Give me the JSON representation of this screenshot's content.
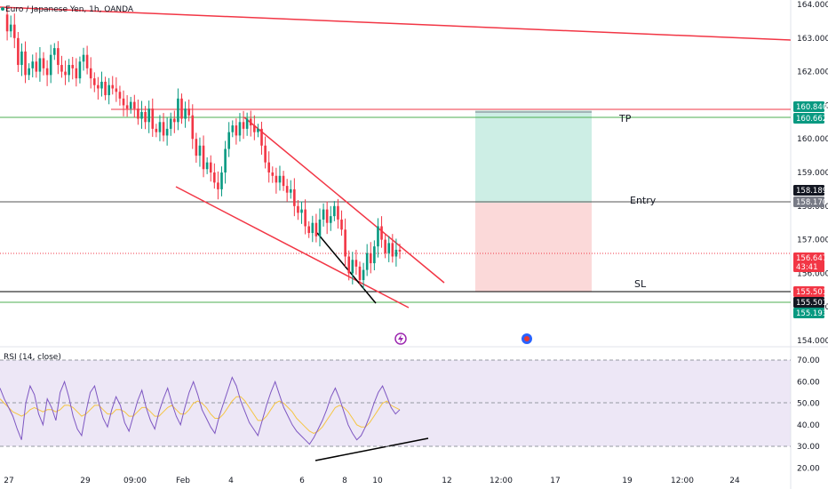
{
  "header": {
    "symbol_title": "Euro / Japanese Yen, 1h, OANDA"
  },
  "rsi": {
    "label": "RSI (14, close)"
  },
  "annotations": {
    "tp": "TP",
    "entry": "Entry",
    "sl": "SL"
  },
  "colors": {
    "up": "#089981",
    "down": "#f23645",
    "trendline": "#f23645",
    "black_line": "#000000",
    "green_line": "#4caf50",
    "profit_zone": "#cdeee5",
    "loss_zone": "#fbd9d9",
    "rsi_line": "#7e57c2",
    "rsi_ma": "#f5c542",
    "rsi_band": "#ede7f6"
  },
  "chart_data": [
    {
      "type": "candlestick",
      "title": "Euro / Japanese Yen, 1h, OANDA",
      "x_ticks": [
        "27",
        "29",
        "09:00",
        "Feb",
        "4",
        "6",
        "8",
        "10",
        "12",
        "12:00",
        "17",
        "19",
        "12:00",
        "24"
      ],
      "y_ticks": [
        154.0,
        155.0,
        156.0,
        157.0,
        158.0,
        159.0,
        160.0,
        161.0,
        162.0,
        163.0,
        164.0
      ],
      "ylim": [
        153.7,
        164.2
      ],
      "price_levels": [
        {
          "name": "upper-red",
          "value": 160.84,
          "label": "160.840",
          "color": "#089981"
        },
        {
          "name": "tp-green",
          "value": 160.662,
          "label": "160.662",
          "color": "#089981"
        },
        {
          "name": "entry-black",
          "value": 158.189,
          "label": "158.189",
          "color": "#131722"
        },
        {
          "name": "entry-grey",
          "value": 158.17,
          "label": "158.170",
          "color": "#787b86"
        },
        {
          "name": "current",
          "value": 156.647,
          "label": "156.647",
          "sublabel": "43:41",
          "color": "#f23645"
        },
        {
          "name": "sl-red",
          "value": 155.501,
          "label": "155.501",
          "color": "#f23645"
        },
        {
          "name": "sl-black",
          "value": 155.501,
          "label": "155.501",
          "color": "#131722"
        },
        {
          "name": "lower-green",
          "value": 155.193,
          "label": "155.193",
          "color": "#089981"
        }
      ],
      "position": {
        "entry": 158.17,
        "take_profit": 160.84,
        "stop_loss": 155.501
      },
      "price_path": [
        163.7,
        163.2,
        163.4,
        163.0,
        162.2,
        162.6,
        161.9,
        162.1,
        162.3,
        162.0,
        162.4,
        162.1,
        161.9,
        162.5,
        162.7,
        162.2,
        162.0,
        161.9,
        162.2,
        162.1,
        161.8,
        162.3,
        162.5,
        162.1,
        161.8,
        161.6,
        161.5,
        161.7,
        161.3,
        161.6,
        161.5,
        161.4,
        161.2,
        161.0,
        160.9,
        161.1,
        160.9,
        160.6,
        160.8,
        160.5,
        160.9,
        160.3,
        160.2,
        160.5,
        160.1,
        160.3,
        160.6,
        160.5,
        161.2,
        160.6,
        160.9,
        160.7,
        160.0,
        159.5,
        159.8,
        159.1,
        159.3,
        159.0,
        158.7,
        158.5,
        159.0,
        159.7,
        160.2,
        160.4,
        160.1,
        160.5,
        160.3,
        160.6,
        160.4,
        160.2,
        160.3,
        159.8,
        159.3,
        159.0,
        158.9,
        158.7,
        158.9,
        158.6,
        158.4,
        158.5,
        158.0,
        157.8,
        157.9,
        157.4,
        157.2,
        157.5,
        157.1,
        157.6,
        157.9,
        157.5,
        157.7,
        158.0,
        157.6,
        157.3,
        156.5,
        156.0,
        156.4,
        156.2,
        155.8,
        156.1,
        156.6,
        156.3,
        156.8,
        157.4,
        157.0,
        156.6,
        156.9,
        156.5,
        156.7,
        156.647
      ]
    },
    {
      "type": "line",
      "title": "RSI (14, close)",
      "y_ticks": [
        20.0,
        30.0,
        40.0,
        50.0,
        60.0,
        70.0
      ],
      "ylim": [
        18,
        75
      ],
      "band": [
        30,
        70
      ],
      "series": [
        {
          "values": [
            57,
            52,
            48,
            44,
            38,
            33,
            50,
            58,
            54,
            45,
            40,
            52,
            48,
            42,
            55,
            60,
            53,
            44,
            38,
            35,
            46,
            55,
            58,
            50,
            43,
            39,
            47,
            53,
            49,
            41,
            37,
            44,
            51,
            56,
            48,
            42,
            38,
            46,
            52,
            57,
            50,
            44,
            40,
            48,
            55,
            60,
            54,
            47,
            43,
            39,
            36,
            44,
            50,
            56,
            62,
            58,
            51,
            46,
            41,
            38,
            35,
            42,
            49,
            55,
            60,
            54,
            48,
            44,
            40,
            37,
            35,
            33,
            31,
            34,
            38,
            42,
            47,
            53,
            57,
            52,
            46,
            40,
            36,
            33,
            35,
            39,
            44,
            50,
            55,
            58,
            53,
            48,
            45,
            47
          ]
        },
        {
          "values": [
            52,
            50,
            48,
            46,
            45,
            44,
            45,
            47,
            48,
            47,
            46,
            47,
            47,
            46,
            47,
            49,
            49,
            48,
            46,
            44,
            45,
            47,
            49,
            49,
            47,
            45,
            45,
            47,
            47,
            46,
            44,
            44,
            46,
            48,
            48,
            46,
            44,
            44,
            46,
            48,
            49,
            47,
            45,
            45,
            47,
            50,
            51,
            50,
            48,
            45,
            43,
            43,
            45,
            48,
            51,
            53,
            53,
            51,
            48,
            45,
            42,
            42,
            44,
            47,
            50,
            51,
            50,
            48,
            46,
            43,
            41,
            39,
            37,
            36,
            37,
            39,
            42,
            45,
            48,
            49,
            48,
            46,
            43,
            40,
            39,
            39,
            41,
            44,
            47,
            50,
            51,
            49,
            48,
            47
          ]
        }
      ]
    }
  ]
}
